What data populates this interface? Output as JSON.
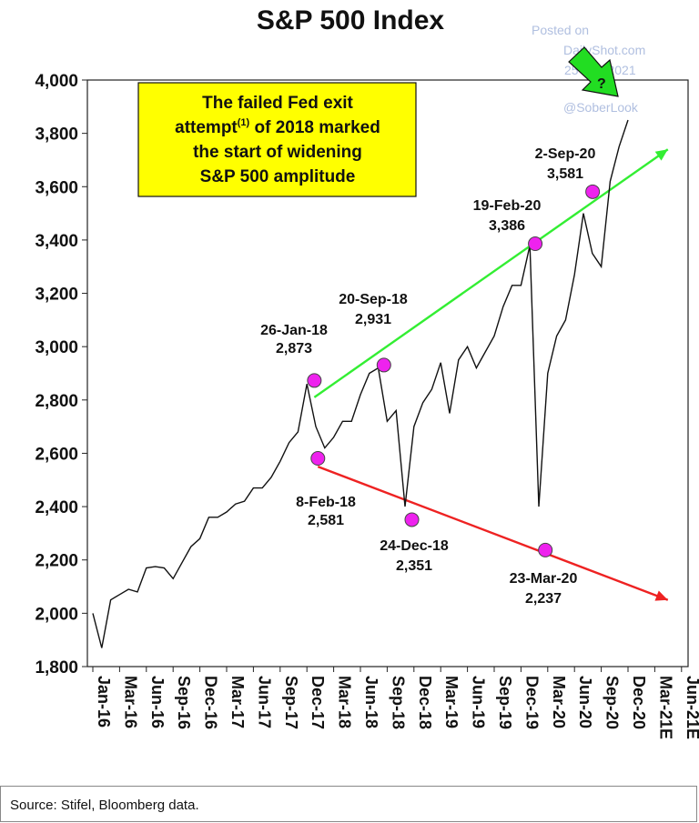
{
  "chart_data": {
    "type": "line",
    "title": "S&P 500 Index",
    "ylim": [
      1800,
      4000
    ],
    "y_ticks": [
      "1,800",
      "2,000",
      "2,200",
      "2,400",
      "2,600",
      "2,800",
      "3,000",
      "3,200",
      "3,400",
      "3,600",
      "3,800",
      "4,000"
    ],
    "y_tick_values": [
      1800,
      2000,
      2200,
      2400,
      2600,
      2800,
      3000,
      3200,
      3400,
      3600,
      3800,
      4000
    ],
    "x_ticks": [
      "Jan-16",
      "Mar-16",
      "Jun-16",
      "Sep-16",
      "Dec-16",
      "Mar-17",
      "Jun-17",
      "Sep-17",
      "Dec-17",
      "Mar-18",
      "Jun-18",
      "Sep-18",
      "Dec-18",
      "Mar-19",
      "Jun-19",
      "Sep-19",
      "Dec-19",
      "Mar-20",
      "Jun-20",
      "Sep-20",
      "Dec-20",
      "Mar-21E",
      "Jun-21E"
    ],
    "series": [
      {
        "x": [
          "2016-01",
          "2016-02",
          "2016-03",
          "2016-04",
          "2016-05",
          "2016-06",
          "2016-07",
          "2016-08",
          "2016-09",
          "2016-10",
          "2016-11",
          "2016-12",
          "2017-01",
          "2017-02",
          "2017-03",
          "2017-04",
          "2017-05",
          "2017-06",
          "2017-07",
          "2017-08",
          "2017-09",
          "2017-10",
          "2017-11",
          "2017-12",
          "2018-01",
          "2018-02",
          "2018-03",
          "2018-04",
          "2018-05",
          "2018-06",
          "2018-07",
          "2018-08",
          "2018-09",
          "2018-10",
          "2018-11",
          "2018-12",
          "2019-01",
          "2019-02",
          "2019-03",
          "2019-04",
          "2019-05",
          "2019-06",
          "2019-07",
          "2019-08",
          "2019-09",
          "2019-10",
          "2019-11",
          "2019-12",
          "2020-01",
          "2020-02",
          "2020-03",
          "2020-04",
          "2020-05",
          "2020-06",
          "2020-07",
          "2020-08",
          "2020-09",
          "2020-10",
          "2020-11",
          "2020-12",
          "2021-01"
        ],
        "values": [
          2000,
          1870,
          2050,
          2070,
          2090,
          2080,
          2170,
          2175,
          2170,
          2130,
          2190,
          2250,
          2280,
          2360,
          2360,
          2380,
          2410,
          2420,
          2470,
          2470,
          2510,
          2570,
          2640,
          2680,
          2860,
          2700,
          2620,
          2660,
          2720,
          2720,
          2820,
          2900,
          2920,
          2720,
          2760,
          2400,
          2700,
          2790,
          2840,
          2940,
          2750,
          2950,
          3000,
          2920,
          2980,
          3040,
          3150,
          3230,
          3230,
          3380,
          2400,
          2900,
          3040,
          3100,
          3270,
          3500,
          3350,
          3300,
          3620,
          3750,
          3850
        ]
      }
    ],
    "highlighted_points": [
      {
        "date": "26-Jan-18",
        "value": "2,873",
        "x": "2018-01-26",
        "y": 2873
      },
      {
        "date": "8-Feb-18",
        "value": "2,581",
        "x": "2018-02-08",
        "y": 2581
      },
      {
        "date": "20-Sep-18",
        "value": "2,931",
        "x": "2018-09-20",
        "y": 2931
      },
      {
        "date": "24-Dec-18",
        "value": "2,351",
        "x": "2018-12-24",
        "y": 2351
      },
      {
        "date": "19-Feb-20",
        "value": "3,386",
        "x": "2020-02-19",
        "y": 3386
      },
      {
        "date": "23-Mar-20",
        "value": "2,237",
        "x": "2020-03-23",
        "y": 2237
      },
      {
        "date": "2-Sep-20",
        "value": "3,581",
        "x": "2020-09-02",
        "y": 3581
      }
    ],
    "trend_lines": [
      {
        "color": "#33ee33",
        "from": {
          "x": "2018-01-26",
          "y": 2810
        },
        "to": {
          "x": "2021-05-15",
          "y": 3740
        }
      },
      {
        "color": "#ee2222",
        "from": {
          "x": "2018-02-08",
          "y": 2550
        },
        "to": {
          "x": "2021-05-15",
          "y": 2050
        }
      }
    ],
    "callout": {
      "lines": [
        "The failed Fed exit",
        "attempt",
        "(1)",
        " of 2018 marked",
        "the start of widening",
        "S&P 500 amplitude"
      ],
      "fill": "#ffff00"
    },
    "colors": {
      "line": "#111111",
      "marker": "#ee22ee",
      "arrow": "#22dd22"
    }
  },
  "watermark": {
    "posted": "Posted on",
    "site": "DailyShot.com",
    "date": "25-Jan-2021",
    "handle": "@SoberLook",
    "arrow_mark": "?"
  },
  "source": "Source: Stifel, Bloomberg data."
}
